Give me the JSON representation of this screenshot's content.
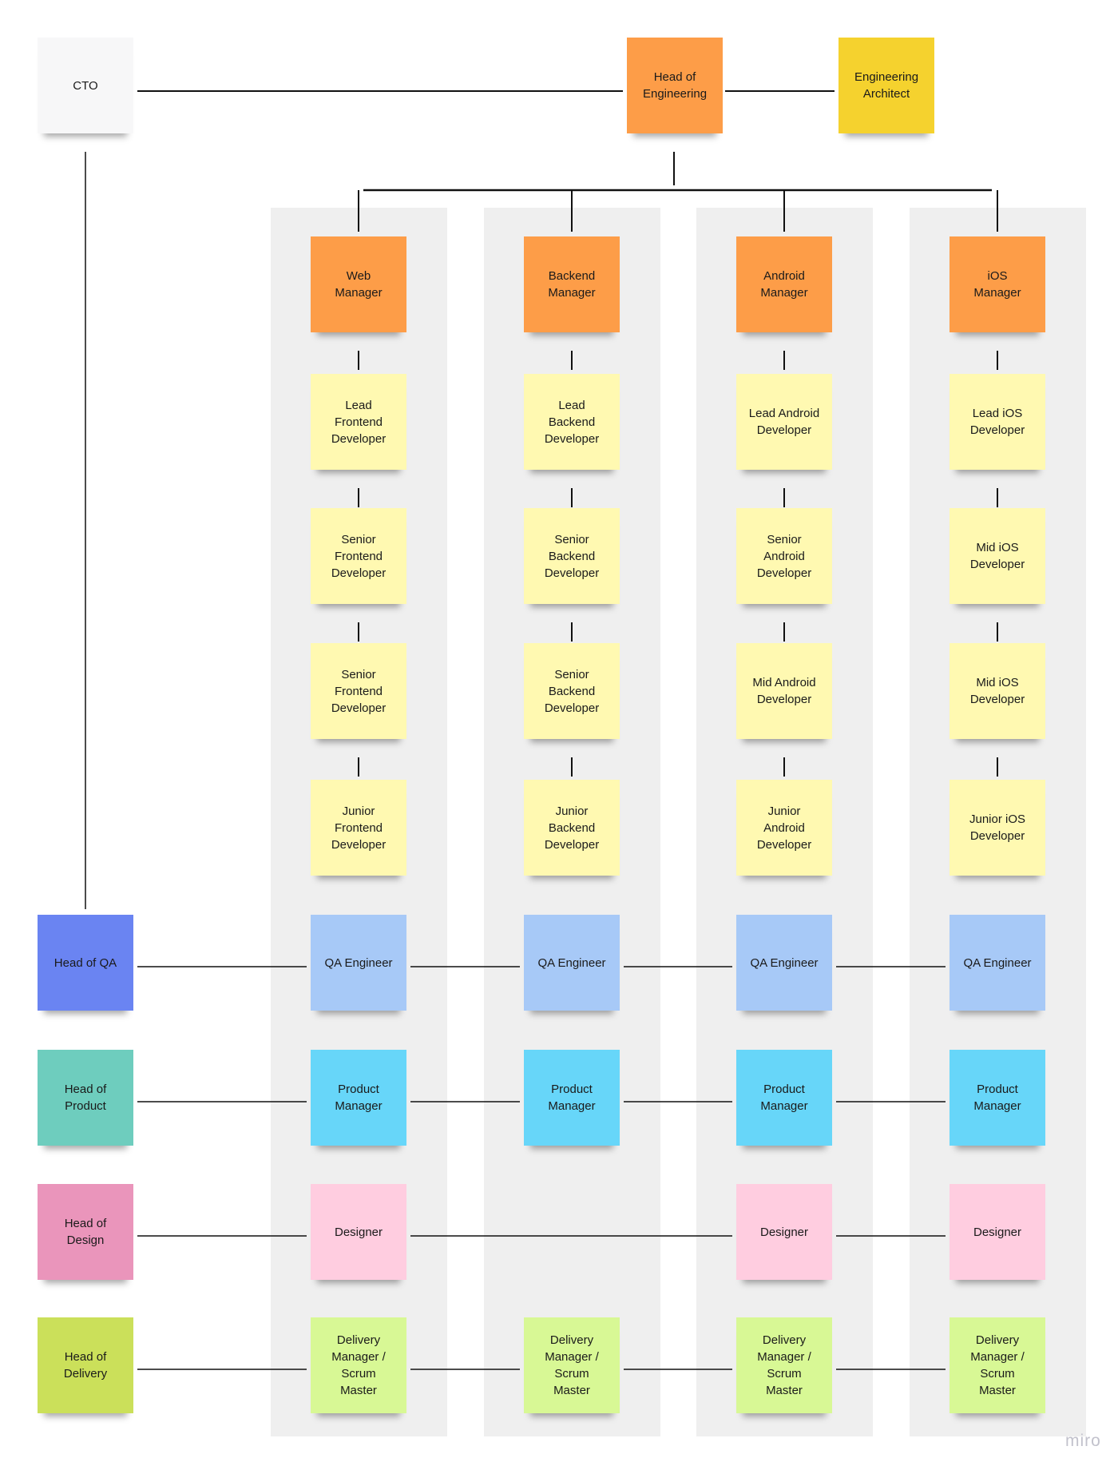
{
  "colors": {
    "cto": "#f7f7f8",
    "manager": "#fd9d48",
    "architect": "#f5d22e",
    "engineer": "#fff9b1",
    "head_qa": "#6a84f2",
    "qa": "#a7c9f7",
    "head_product": "#6ecdbe",
    "product": "#67d6f9",
    "head_design": "#ea95bb",
    "design": "#ffcde0",
    "head_delivery": "#cbe05a",
    "delivery": "#d8f895"
  },
  "top": {
    "cto": "CTO",
    "head_of_engineering": "Head of\nEngineering",
    "engineering_architect": "Engineering\nArchitect"
  },
  "heads": [
    {
      "label": "Head of QA",
      "color": "head_qa"
    },
    {
      "label": "Head of\nProduct",
      "color": "head_product"
    },
    {
      "label": "Head of\nDesign",
      "color": "head_design"
    },
    {
      "label": "Head of\nDelivery",
      "color": "head_delivery"
    }
  ],
  "columns": [
    {
      "manager": "Web\nManager",
      "engineers": [
        "Lead\nFrontend\nDeveloper",
        "Senior\nFrontend\nDeveloper",
        "Senior\nFrontend\nDeveloper",
        "Junior\nFrontend\nDeveloper"
      ],
      "qa": "QA Engineer",
      "product": "Product\nManager",
      "design": "Designer",
      "delivery": "Delivery\nManager /\nScrum\nMaster"
    },
    {
      "manager": "Backend\nManager",
      "engineers": [
        "Lead\nBackend\nDeveloper",
        "Senior\nBackend\nDeveloper",
        "Senior\nBackend\nDeveloper",
        "Junior\nBackend\nDeveloper"
      ],
      "qa": "QA Engineer",
      "product": "Product\nManager",
      "design": null,
      "delivery": "Delivery\nManager /\nScrum\nMaster"
    },
    {
      "manager": "Android\nManager",
      "engineers": [
        "Lead Android\nDeveloper",
        "Senior\nAndroid\nDeveloper",
        "Mid Android\nDeveloper",
        "Junior\nAndroid\nDeveloper"
      ],
      "qa": "QA Engineer",
      "product": "Product\nManager",
      "design": "Designer",
      "delivery": "Delivery\nManager /\nScrum\nMaster"
    },
    {
      "manager": "iOS\nManager",
      "engineers": [
        "Lead iOS\nDeveloper",
        "Mid iOS\nDeveloper",
        "Mid iOS\nDeveloper",
        "Junior iOS\nDeveloper"
      ],
      "qa": "QA Engineer",
      "product": "Product\nManager",
      "design": "Designer",
      "delivery": "Delivery\nManager /\nScrum\nMaster"
    }
  ],
  "watermark": "miro"
}
